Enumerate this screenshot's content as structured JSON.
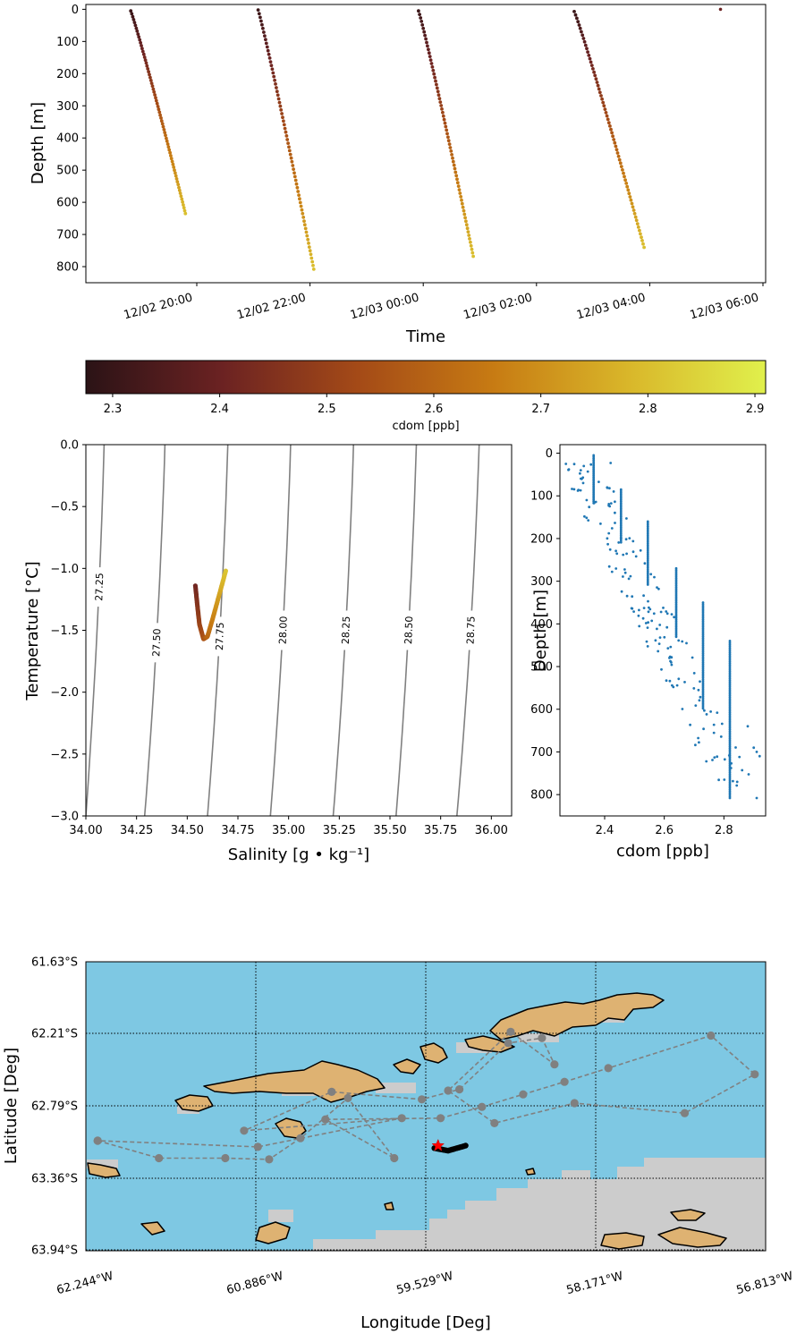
{
  "chart_data": [
    {
      "type": "scatter",
      "xlabel": "Time",
      "ylabel": "Depth [m]",
      "xticks": [
        "12/02 20:00",
        "12/02 22:00",
        "12/03 00:00",
        "12/03 02:00",
        "12/03 04:00",
        "12/03 06:00"
      ],
      "yticks": [
        "0",
        "100",
        "200",
        "300",
        "400",
        "500",
        "600",
        "700",
        "800"
      ],
      "ylim": [
        850,
        -15
      ],
      "y_inverted": true,
      "series": [
        {
          "start_time": "12/02 18:50",
          "end_time": "12/02 19:48",
          "depth_start": 5,
          "depth_end": 635
        },
        {
          "start_time": "12/02 21:05",
          "end_time": "12/02 22:04",
          "depth_start": 2,
          "depth_end": 808
        },
        {
          "start_time": "12/02 23:55",
          "end_time": "12/03 00:53",
          "depth_start": 5,
          "depth_end": 768
        },
        {
          "start_time": "12/03 02:40",
          "end_time": "12/03 03:54",
          "depth_start": 7,
          "depth_end": 740
        },
        {
          "start_time": "12/03 05:15",
          "end_time": "12/03 05:15",
          "depth_start": 0,
          "depth_end": 0
        }
      ],
      "colorbar": {
        "label": "cdom [ppb]",
        "ticks": [
          "2.3",
          "2.4",
          "2.5",
          "2.6",
          "2.7",
          "2.8",
          "2.9"
        ],
        "range": [
          2.275,
          2.91
        ],
        "colormap": "afmhot-like",
        "colors": [
          "#2b1316",
          "#6b2222",
          "#a44a17",
          "#c77b13",
          "#d9b72a",
          "#e0f04c"
        ]
      }
    },
    {
      "type": "line",
      "xlabel": "Salinity [g • kg⁻¹]",
      "ylabel": "Temperature [°C]",
      "xticks": [
        "34.00",
        "34.25",
        "34.50",
        "34.75",
        "35.00",
        "35.25",
        "35.50",
        "35.75",
        "36.00"
      ],
      "yticks": [
        "0.0",
        "−0.5",
        "−1.0",
        "−1.5",
        "−2.0",
        "−2.5",
        "−3.0"
      ],
      "xlim": [
        34.0,
        36.1
      ],
      "ylim": [
        -3.0,
        0.0
      ],
      "density_contours": [
        {
          "label": "27.25",
          "s_top": 34.09,
          "s_bottom": 34.0
        },
        {
          "label": "27.50",
          "s_top": 34.39,
          "s_bottom": 34.29
        },
        {
          "label": "27.75",
          "s_top": 34.7,
          "s_bottom": 34.6
        },
        {
          "label": "28.00",
          "s_top": 35.01,
          "s_bottom": 34.91
        },
        {
          "label": "28.25",
          "s_top": 35.32,
          "s_bottom": 35.22
        },
        {
          "label": "28.50",
          "s_top": 35.63,
          "s_bottom": 35.53
        },
        {
          "label": "28.75",
          "s_top": 35.94,
          "s_bottom": 35.83
        }
      ],
      "ts_profile": [
        {
          "s": 34.54,
          "t": -1.14
        },
        {
          "s": 34.55,
          "t": -1.3
        },
        {
          "s": 34.56,
          "t": -1.45
        },
        {
          "s": 34.58,
          "t": -1.57
        },
        {
          "s": 34.6,
          "t": -1.55
        },
        {
          "s": 34.63,
          "t": -1.38
        },
        {
          "s": 34.66,
          "t": -1.2
        },
        {
          "s": 34.69,
          "t": -1.02
        }
      ]
    },
    {
      "type": "scatter",
      "xlabel": "cdom [ppb]",
      "ylabel": "Depth [m]",
      "xticks": [
        "2.4",
        "2.6",
        "2.8"
      ],
      "yticks": [
        "0",
        "100",
        "200",
        "300",
        "400",
        "500",
        "600",
        "700",
        "800"
      ],
      "xlim": [
        2.25,
        2.94
      ],
      "ylim": [
        850,
        -20
      ],
      "y_inverted": true,
      "point_color": "#1f77b4"
    },
    {
      "type": "map",
      "xlabel": "Longitude [Deg]",
      "ylabel": "Latitude [Deg]",
      "xticks": [
        "62.244°W",
        "60.886°W",
        "59.529°W",
        "58.171°W",
        "56.813°W"
      ],
      "yticks": [
        "61.63°S",
        "62.21°S",
        "62.79°S",
        "63.36°S",
        "63.94°S"
      ],
      "xlim": [
        -62.244,
        -56.813
      ],
      "ylim": [
        -63.94,
        -61.63
      ],
      "colors": {
        "ocean": "#7ec8e3",
        "land": "#deb272",
        "ice": "#cccccc",
        "track": "#808080",
        "glider": "#000000",
        "current": "#ff0000"
      },
      "waypoints_lon_lat": [
        [
          -62.15,
          -63.06
        ],
        [
          -61.66,
          -63.2
        ],
        [
          -61.13,
          -63.2
        ],
        [
          -60.78,
          -63.21
        ],
        [
          -60.53,
          -63.04
        ],
        [
          -60.15,
          -62.72
        ],
        [
          -59.78,
          -63.2
        ],
        [
          -60.33,
          -62.89
        ],
        [
          -59.41,
          -62.88
        ],
        [
          -59.08,
          -62.79
        ],
        [
          -58.75,
          -62.69
        ],
        [
          -58.42,
          -62.59
        ],
        [
          -58.07,
          -62.48
        ],
        [
          -57.25,
          -62.22
        ],
        [
          -56.9,
          -62.53
        ],
        [
          -57.46,
          -62.84
        ],
        [
          -58.34,
          -62.76
        ],
        [
          -58.98,
          -62.92
        ],
        [
          -59.35,
          -62.66
        ],
        [
          -58.85,
          -62.19
        ],
        [
          -58.5,
          -62.45
        ],
        [
          -58.6,
          -62.24
        ],
        [
          -58.87,
          -62.28
        ],
        [
          -59.26,
          -62.65
        ],
        [
          -59.56,
          -62.73
        ],
        [
          -60.28,
          -62.67
        ],
        [
          -60.98,
          -62.98
        ],
        [
          -59.72,
          -62.88
        ],
        [
          -60.87,
          -63.11
        ],
        [
          -62.15,
          -63.06
        ]
      ],
      "glider_track_lon_lat": [
        [
          -59.46,
          -63.12
        ],
        [
          -59.35,
          -63.14
        ],
        [
          -59.21,
          -63.1
        ]
      ],
      "current_position_lon_lat": [
        -59.43,
        -63.1
      ]
    }
  ]
}
